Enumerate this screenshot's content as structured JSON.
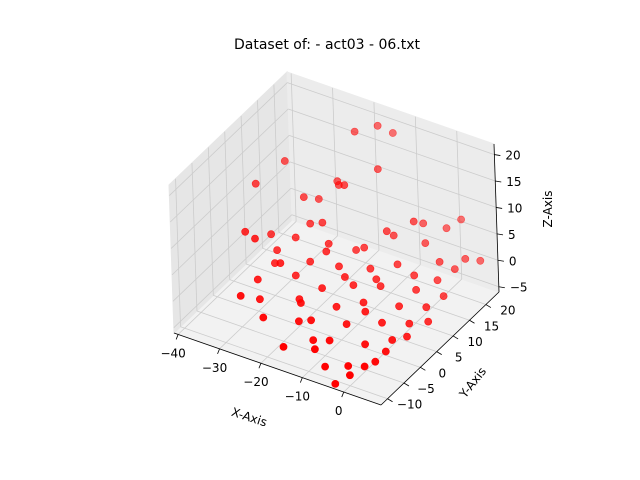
{
  "chart_data": {
    "type": "scatter",
    "projection": "3d",
    "title": "Dataset of:  - act03 - 06.txt",
    "xlabel": "X-Axis",
    "ylabel": "Y-Axis",
    "zlabel": "Z-Axis",
    "xlim": [
      -41,
      9
    ],
    "ylim": [
      -12,
      24
    ],
    "zlim": [
      -6,
      22
    ],
    "xticks": [
      -40,
      -30,
      -20,
      -10,
      0
    ],
    "yticks": [
      -10,
      -5,
      0,
      5,
      10,
      15,
      20
    ],
    "zticks": [
      -5,
      0,
      5,
      10,
      15,
      20
    ],
    "x_tick_labels": [
      "−40",
      "−30",
      "−20",
      "−10",
      "0"
    ],
    "y_tick_labels": [
      "−10",
      "−5",
      "0",
      "5",
      "10",
      "15",
      "20"
    ],
    "z_tick_labels": [
      "−5",
      "0",
      "5",
      "10",
      "15",
      "20"
    ],
    "grid": true,
    "marker_color": "#ff0000",
    "series": [
      {
        "points": [
          [
            -38,
            10,
            10
          ],
          [
            -33,
            8,
            3
          ],
          [
            -32,
            2,
            6
          ],
          [
            -30,
            6,
            2
          ],
          [
            -30,
            0,
            0
          ],
          [
            -29,
            4,
            1
          ],
          [
            -28,
            -2,
            -2
          ],
          [
            -27,
            8,
            4
          ],
          [
            -26,
            2,
            3
          ],
          [
            -25,
            10,
            6
          ],
          [
            -24,
            4,
            0
          ],
          [
            -22,
            6,
            2
          ],
          [
            -21,
            14,
            12
          ],
          [
            -20,
            0,
            -1
          ],
          [
            -19,
            8,
            5
          ],
          [
            -18,
            12,
            14
          ],
          [
            -17,
            -4,
            -2
          ],
          [
            -16,
            2,
            1
          ],
          [
            -15,
            6,
            3
          ],
          [
            -14,
            10,
            4
          ],
          [
            -13,
            16,
            16
          ],
          [
            -12,
            -6,
            -3
          ],
          [
            -11,
            0,
            0
          ],
          [
            -10,
            4,
            2
          ],
          [
            -9,
            8,
            3
          ],
          [
            -8,
            12,
            8
          ],
          [
            -7,
            -2,
            -1
          ],
          [
            -6,
            2,
            1
          ],
          [
            -5,
            6,
            2
          ],
          [
            -4,
            10,
            4
          ],
          [
            -3,
            14,
            10
          ],
          [
            -2,
            -8,
            -4
          ],
          [
            -1,
            -4,
            -2
          ],
          [
            0,
            0,
            0
          ],
          [
            1,
            4,
            1
          ],
          [
            2,
            8,
            2
          ],
          [
            3,
            -6,
            -3
          ],
          [
            4,
            -2,
            -1
          ],
          [
            5,
            2,
            0
          ],
          [
            6,
            6,
            1
          ],
          [
            -20,
            18,
            20
          ],
          [
            -16,
            20,
            21
          ],
          [
            -14,
            22,
            19
          ],
          [
            -23,
            16,
            11
          ],
          [
            -26,
            14,
            8
          ],
          [
            -18,
            -2,
            0
          ],
          [
            -12,
            4,
            3
          ],
          [
            -8,
            -6,
            -2
          ],
          [
            -4,
            0,
            1
          ],
          [
            0,
            -10,
            -4
          ],
          [
            2,
            -8,
            -3
          ],
          [
            4,
            -4,
            -2
          ],
          [
            6,
            0,
            -1
          ],
          [
            8,
            4,
            0
          ],
          [
            -2,
            16,
            5
          ],
          [
            0,
            20,
            6
          ],
          [
            2,
            22,
            7
          ],
          [
            4,
            12,
            2
          ],
          [
            6,
            18,
            3
          ],
          [
            8,
            20,
            2
          ],
          [
            -10,
            -8,
            -3
          ],
          [
            -6,
            -10,
            -4
          ],
          [
            -2,
            -12,
            -5
          ],
          [
            -14,
            -4,
            -1
          ],
          [
            -18,
            6,
            5
          ],
          [
            -22,
            10,
            7
          ],
          [
            -28,
            12,
            9
          ],
          [
            -34,
            14,
            13
          ],
          [
            -36,
            4,
            5
          ],
          [
            -31,
            -4,
            -1
          ],
          [
            -24,
            -6,
            -2
          ],
          [
            -16,
            -10,
            -3
          ],
          [
            -8,
            14,
            6
          ],
          [
            -4,
            18,
            7
          ],
          [
            0,
            10,
            3
          ],
          [
            3,
            14,
            4
          ],
          [
            7,
            10,
            1
          ],
          [
            5,
            16,
            2
          ],
          [
            -12,
            10,
            5
          ],
          [
            -6,
            6,
            3
          ]
        ]
      }
    ]
  }
}
